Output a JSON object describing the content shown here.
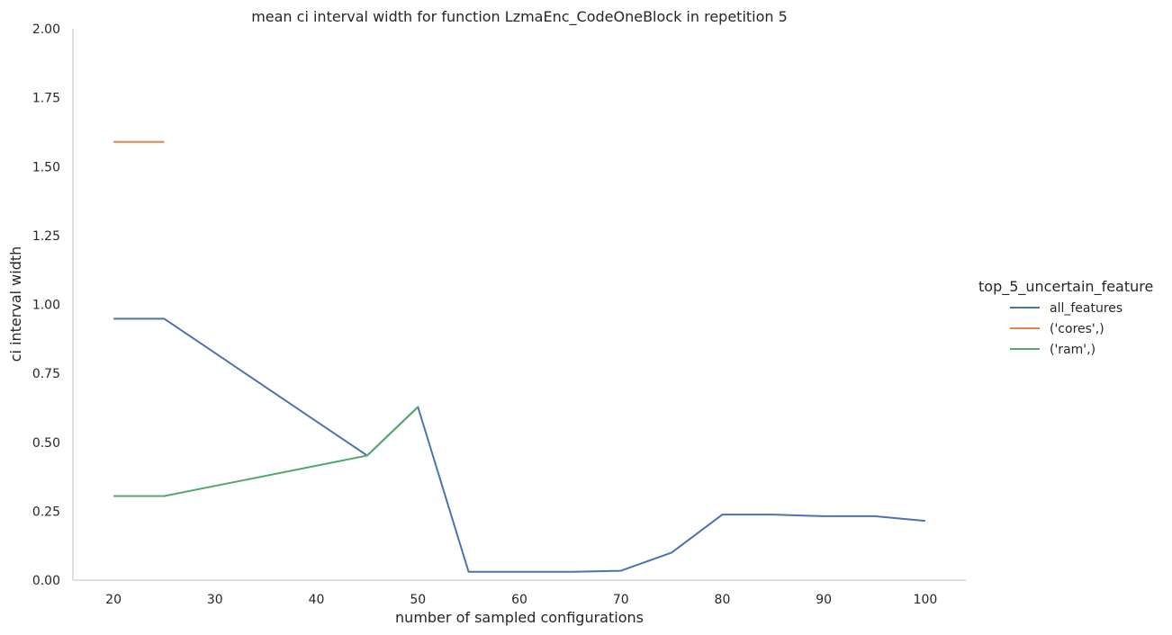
{
  "chart_data": {
    "type": "line",
    "title": "mean ci interval width for function LzmaEnc_CodeOneBlock in repetition 5",
    "xlabel": "number of sampled configurations",
    "ylabel": "ci interval width",
    "xlim": [
      16,
      104
    ],
    "ylim": [
      0,
      2.0
    ],
    "xticks": [
      "20",
      "30",
      "40",
      "50",
      "60",
      "70",
      "80",
      "90",
      "100"
    ],
    "yticks": [
      "0.00",
      "0.25",
      "0.50",
      "0.75",
      "1.00",
      "1.25",
      "1.50",
      "1.75",
      "2.00"
    ],
    "grid": false,
    "legend": {
      "title": "top_5_uncertain_feature",
      "placement": "right"
    },
    "series": [
      {
        "name": "all_features",
        "color": "#4c72b0",
        "x": [
          20,
          25,
          45,
          50,
          55,
          60,
          65,
          70,
          75,
          80,
          85,
          90,
          95,
          100
        ],
        "y": [
          0.948,
          0.948,
          0.452,
          0.628,
          0.03,
          0.03,
          0.03,
          0.034,
          0.1,
          0.238,
          0.238,
          0.232,
          0.232,
          0.215
        ]
      },
      {
        "name": "('cores',)",
        "color": "#dd8452",
        "x": [
          20,
          25
        ],
        "y": [
          1.59,
          1.59
        ]
      },
      {
        "name": "('ram',)",
        "color": "#55a868",
        "x": [
          20,
          25,
          45,
          50
        ],
        "y": [
          0.305,
          0.305,
          0.452,
          0.628
        ]
      }
    ]
  }
}
